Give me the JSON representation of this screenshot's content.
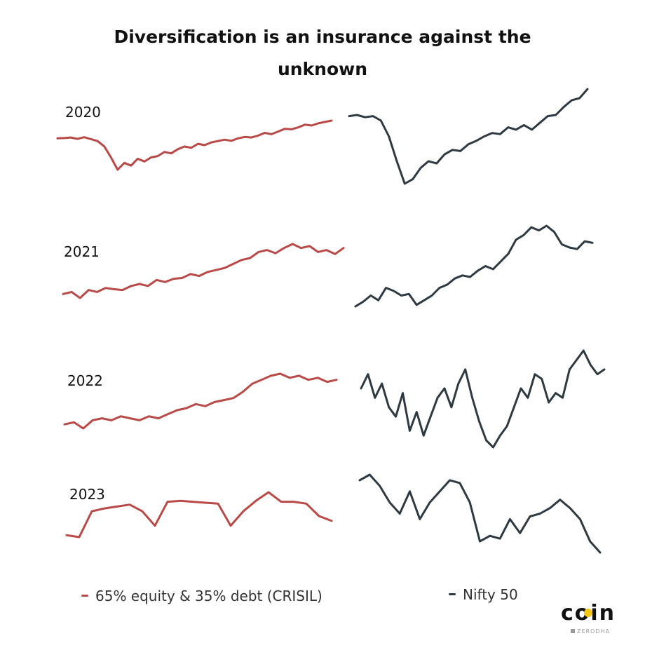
{
  "colors": {
    "portfolio": "#b94a48",
    "nifty": "#2e3a42"
  },
  "chart_data": {
    "type": "line",
    "title": "Diversification is an insurance against the unknown",
    "legend": [
      "65% equity & 35% debt (CRISIL)",
      "Nifty 50"
    ],
    "xlabel": "",
    "ylabel": "",
    "rows": [
      {
        "year": "2020",
        "series": [
          {
            "name": "65% equity & 35% debt (CRISIL)",
            "values": [
              100.5,
              100.6,
              100.8,
              100.3,
              100.9,
              100.2,
              99.5,
              97.5,
              93.5,
              89.0,
              91.5,
              90.5,
              93.0,
              92.0,
              93.5,
              94.0,
              95.5,
              95.0,
              96.5,
              97.5,
              97.0,
              98.5,
              98.0,
              99.0,
              99.5,
              100.0,
              99.6,
              100.5,
              101.0,
              100.8,
              101.5,
              102.5,
              102.0,
              103.0,
              104.0,
              103.8,
              104.5,
              105.5,
              105.2,
              106.0,
              106.5,
              107.0
            ]
          },
          {
            "name": "Nifty 50",
            "values": [
              100,
              100.5,
              99.5,
              100.0,
              98.0,
              91.0,
              80.0,
              70.0,
              72.0,
              77.0,
              80.0,
              79.0,
              83.0,
              85.0,
              84.5,
              87.5,
              89.0,
              91.0,
              92.5,
              92.0,
              95.0,
              94.0,
              96.0,
              94.0,
              97.0,
              100.0,
              100.5,
              104.0,
              107.0,
              108.0,
              112.0
            ]
          }
        ]
      },
      {
        "year": "2021",
        "series": [
          {
            "name": "65% equity & 35% debt (CRISIL)",
            "values": [
              100.0,
              100.5,
              99.0,
              101.0,
              100.5,
              101.5,
              101.2,
              101.0,
              102.0,
              102.5,
              102.0,
              103.5,
              103.0,
              103.8,
              104.0,
              105.0,
              104.5,
              105.5,
              106.0,
              106.5,
              107.5,
              108.5,
              109.0,
              110.5,
              111.0,
              110.2,
              111.5,
              112.5,
              111.5,
              112.0,
              110.5,
              111.0,
              110.0,
              111.5
            ]
          },
          {
            "name": "Nifty 50",
            "values": [
              100.0,
              101.5,
              103.5,
              102.0,
              106.0,
              105.0,
              103.5,
              104.0,
              100.5,
              102.0,
              103.5,
              106.0,
              107.0,
              109.0,
              110.0,
              109.5,
              111.5,
              113.0,
              112.0,
              114.5,
              117.0,
              121.5,
              123.0,
              125.5,
              124.5,
              126.0,
              124.0,
              120.0,
              119.0,
              118.5,
              121.0,
              120.5
            ]
          }
        ]
      },
      {
        "year": "2022",
        "series": [
          {
            "name": "65% equity & 35% debt (CRISIL)",
            "values": [
              100.0,
              100.5,
              99.0,
              101.0,
              101.5,
              101.0,
              102.0,
              101.5,
              101.0,
              102.0,
              101.5,
              102.5,
              103.5,
              104.0,
              105.0,
              104.5,
              105.5,
              106.0,
              106.5,
              108.0,
              110.0,
              111.0,
              112.0,
              112.5,
              111.5,
              112.0,
              111.0,
              111.5,
              110.5,
              111.0
            ]
          },
          {
            "name": "Nifty 50",
            "values": [
              100.0,
              103.0,
              98.0,
              101.0,
              96.0,
              94.0,
              99.0,
              91.0,
              95.0,
              90.0,
              94.0,
              98.0,
              100.0,
              96.0,
              101.0,
              104.0,
              98.0,
              93.0,
              89.0,
              87.5,
              90.0,
              92.0,
              96.0,
              100.0,
              98.0,
              103.0,
              102.0,
              97.0,
              99.0,
              98.0,
              104.0,
              106.0,
              108.0,
              105.0,
              103.0,
              104.0
            ]
          }
        ]
      },
      {
        "year": "2023",
        "series": [
          {
            "name": "65% equity & 35% debt (CRISIL)",
            "values": [
              100.0,
              99.8,
              102.5,
              102.8,
              103.0,
              103.2,
              102.5,
              101.0,
              103.5,
              103.6,
              103.5,
              103.4,
              103.3,
              101.0,
              102.5,
              103.6,
              104.5,
              103.5,
              103.5,
              103.3,
              102.0,
              101.5
            ]
          },
          {
            "name": "Nifty 50",
            "values": [
              100.0,
              101.0,
              99.0,
              96.0,
              94.0,
              98.0,
              93.0,
              96.0,
              98.0,
              100.0,
              99.5,
              96.0,
              89.0,
              90.0,
              89.5,
              93.0,
              90.5,
              93.5,
              94.0,
              95.0,
              96.5,
              95.0,
              93.0,
              89.0,
              87.0
            ]
          }
        ]
      }
    ]
  },
  "brand": {
    "logo": "coin",
    "sub": "ZERODHA"
  }
}
